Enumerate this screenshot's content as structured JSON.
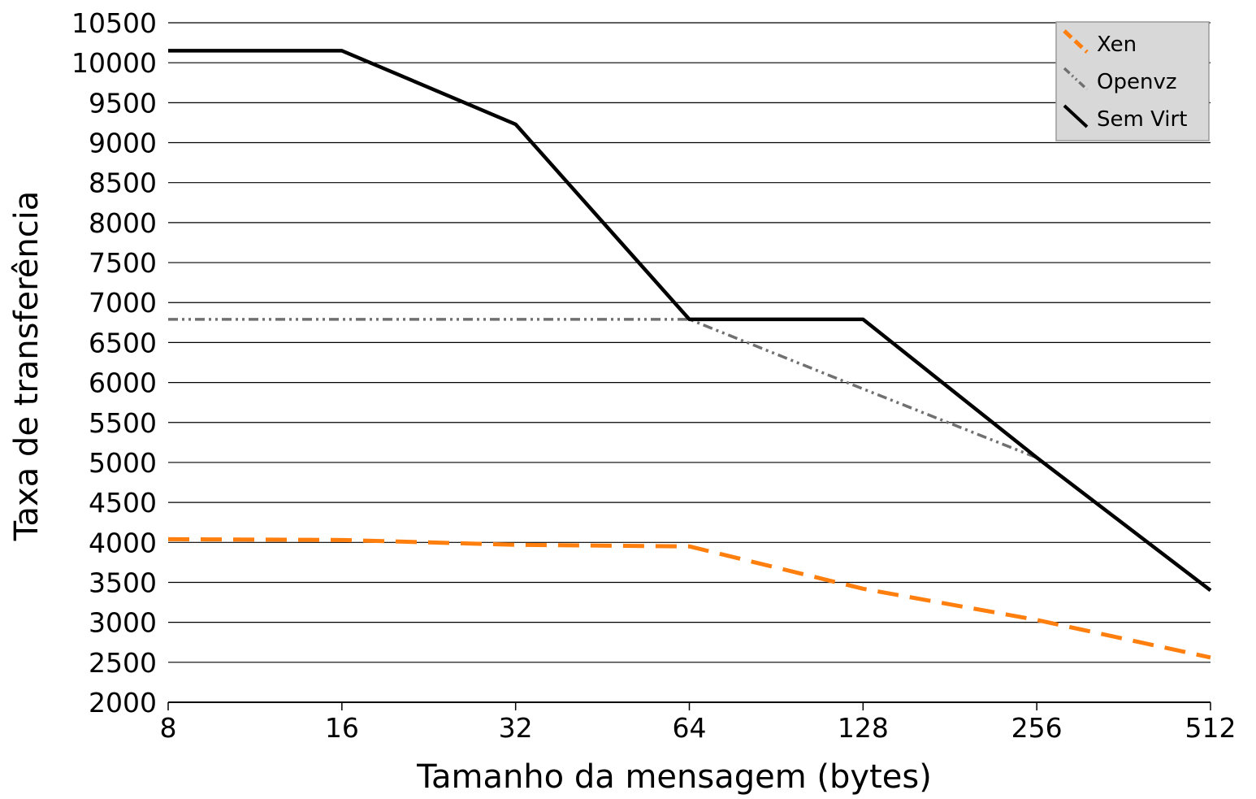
{
  "chart_data": {
    "type": "line",
    "x_scale": "log2",
    "x": [
      8,
      16,
      32,
      64,
      128,
      256,
      512
    ],
    "x_tick_labels": [
      "8",
      "16",
      "32",
      "64",
      "128",
      "256",
      "512"
    ],
    "y_tick_labels": [
      "10500",
      "10000",
      "9500",
      "9000",
      "8500",
      "8000",
      "7500",
      "7000",
      "6500",
      "6000",
      "5500",
      "5000",
      "4500",
      "4000",
      "3500",
      "3000",
      "2500",
      "2000"
    ],
    "ylim": [
      2000,
      10500
    ],
    "xlabel": "Tamanho da mensagem (bytes)",
    "ylabel": "Taxa de transferência",
    "grid": "horizontal",
    "legend_position": "top-right",
    "series": [
      {
        "name": "Xen",
        "values": [
          4040,
          4030,
          3970,
          3950,
          3420,
          3030,
          2560
        ],
        "color": "#ff7f0e",
        "style": "dashed"
      },
      {
        "name": "Openvz",
        "values": [
          6790,
          6790,
          6790,
          6790,
          5920,
          5060,
          null
        ],
        "color": "#707070",
        "style": "dash-dot-dot"
      },
      {
        "name": "Sem Virt",
        "values": [
          10150,
          10150,
          9230,
          6790,
          6790,
          5060,
          3400
        ],
        "color": "#000000",
        "style": "solid"
      }
    ]
  }
}
